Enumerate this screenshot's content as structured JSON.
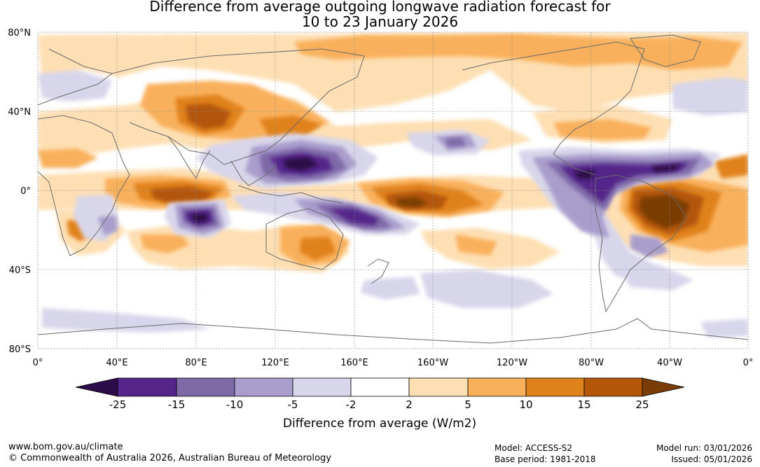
{
  "title": {
    "line1": "Difference from average outgoing longwave radiation forecast for",
    "line2": "10 to 23 January 2026"
  },
  "map": {
    "lat_labels": [
      "80°N",
      "40°N",
      "0°",
      "40°S",
      "80°S"
    ],
    "lon_labels": [
      "0°",
      "40°E",
      "80°E",
      "120°E",
      "160°E",
      "160°W",
      "120°W",
      "80°W",
      "40°W",
      "0°"
    ]
  },
  "colorbar": {
    "title": "Difference from average (W/m2)",
    "tick_labels": [
      "-25",
      "-15",
      "-10",
      "-5",
      "-2",
      "2",
      "5",
      "10",
      "15",
      "25"
    ],
    "colors": {
      "lt_-25": "#2d0b47",
      "-25_-15": "#55258a",
      "-15_-10": "#7f6aa8",
      "-10_-5": "#a99dcc",
      "-5_-2": "#d8d6ea",
      "-2_2": "#ffffff",
      "2_5": "#fedfb3",
      "5_10": "#f9b05b",
      "10_15": "#e0821c",
      "15_25": "#b35708",
      "gt_25": "#7a3c06"
    }
  },
  "footer": {
    "url": "www.bom.gov.au/climate",
    "copyright": "© Commonwealth of Australia 2026, Australian Bureau of Meteorology",
    "model": "Model: ACCESS-S2",
    "base_period": "Base period: 1981-2018",
    "model_run": "Model run: 03/01/2026",
    "issued": "Issued: 05/01/2026"
  }
}
